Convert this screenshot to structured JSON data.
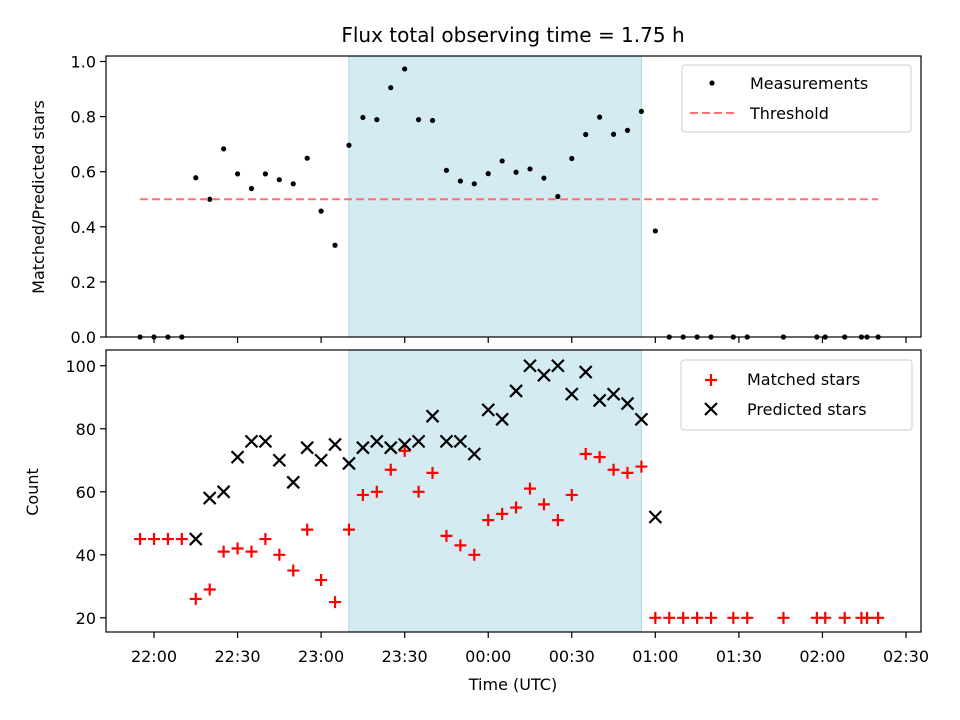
{
  "chart_data": {
    "type": "scatter",
    "title": "Flux total observing time = 1.75 h",
    "xlabel": "Time (UTC)",
    "x_tick_labels": [
      "22:00",
      "22:30",
      "23:00",
      "23:30",
      "00:00",
      "00:30",
      "01:00",
      "01:30",
      "02:00",
      "02:30"
    ],
    "highlight_window": {
      "start": "23:10",
      "end": "00:55",
      "color": "#add8e6"
    },
    "times": [
      "21:55",
      "22:00",
      "22:05",
      "22:10",
      "22:15",
      "22:20",
      "22:25",
      "22:30",
      "22:35",
      "22:40",
      "22:45",
      "22:50",
      "22:55",
      "23:00",
      "23:05",
      "23:10",
      "23:15",
      "23:20",
      "23:25",
      "23:30",
      "23:35",
      "23:40",
      "23:45",
      "23:50",
      "23:55",
      "00:00",
      "00:05",
      "00:10",
      "00:15",
      "00:20",
      "00:25",
      "00:30",
      "00:35",
      "00:40",
      "00:45",
      "00:50",
      "00:55",
      "01:00",
      "01:05",
      "01:10",
      "01:15",
      "01:20",
      "01:28",
      "01:33",
      "01:46",
      "01:58",
      "02:01",
      "02:08",
      "02:14",
      "02:16",
      "02:20"
    ],
    "panels": [
      {
        "ylabel": "Matched/Predicted stars",
        "ylim": [
          0,
          1.02
        ],
        "y_ticks": [
          "0.0",
          "0.2",
          "0.4",
          "0.6",
          "0.8",
          "1.0"
        ],
        "legend": {
          "position": "upper right",
          "entries": [
            "Measurements",
            "Threshold"
          ]
        },
        "series": [
          {
            "name": "Measurements",
            "marker": "dot",
            "color": "#000000",
            "values": [
              0,
              0,
              0,
              0,
              0.578,
              0.5,
              0.683,
              0.592,
              0.539,
              0.592,
              0.571,
              0.556,
              0.649,
              0.457,
              0.333,
              0.696,
              0.797,
              0.789,
              0.905,
              0.973,
              0.789,
              0.786,
              0.605,
              0.566,
              0.556,
              0.593,
              0.639,
              0.598,
              0.61,
              0.577,
              0.51,
              0.648,
              0.735,
              0.798,
              0.736,
              0.75,
              0.819,
              0.385,
              0,
              0,
              0,
              0,
              0,
              0,
              0,
              0,
              0,
              0,
              0,
              0,
              0
            ]
          },
          {
            "name": "Threshold",
            "style": "dashed",
            "color": "#ff7070",
            "x_range": [
              "21:55",
              "02:20"
            ],
            "value": 0.5
          }
        ]
      },
      {
        "ylabel": "Count",
        "ylim": [
          15.5,
          105
        ],
        "y_ticks": [
          "20",
          "40",
          "60",
          "80",
          "100"
        ],
        "legend": {
          "position": "upper right",
          "entries": [
            "Matched stars",
            "Predicted stars"
          ]
        },
        "series": [
          {
            "name": "Matched stars",
            "marker": "plus",
            "color": "#ff0000",
            "values": [
              45,
              45,
              45,
              45,
              26,
              29,
              41,
              42,
              41,
              45,
              40,
              35,
              48,
              32,
              25,
              48,
              59,
              60,
              67,
              73,
              60,
              66,
              46,
              43,
              40,
              51,
              53,
              55,
              61,
              56,
              51,
              59,
              72,
              71,
              67,
              66,
              68,
              20,
              20,
              20,
              20,
              20,
              20,
              20,
              20,
              20,
              20,
              20,
              20,
              20,
              20
            ]
          },
          {
            "name": "Predicted stars",
            "marker": "x",
            "color": "#000000",
            "values": [
              null,
              null,
              null,
              null,
              45,
              58,
              60,
              71,
              76,
              76,
              70,
              63,
              74,
              70,
              75,
              69,
              74,
              76,
              74,
              75,
              76,
              84,
              76,
              76,
              72,
              86,
              83,
              92,
              100,
              97,
              100,
              91,
              98,
              89,
              91,
              88,
              83,
              52,
              null,
              null,
              null,
              null,
              null,
              null,
              null,
              null,
              null,
              null,
              null,
              null,
              null
            ]
          }
        ]
      }
    ]
  }
}
